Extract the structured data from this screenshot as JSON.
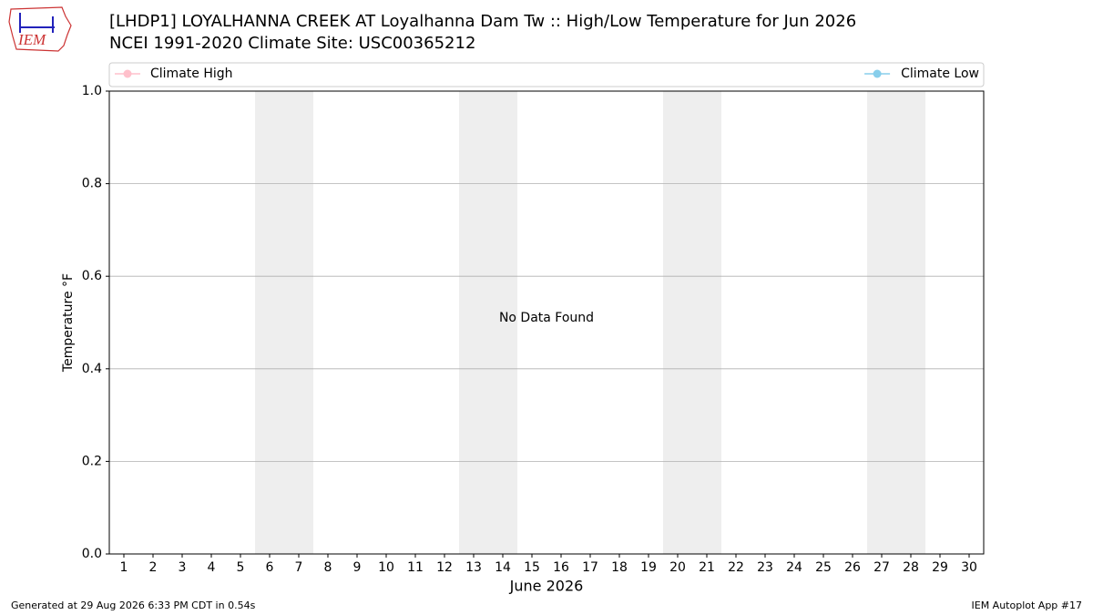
{
  "chart_data": {
    "type": "line",
    "title": "[LHDP1] LOYALHANNA CREEK  AT Loyalhanna Dam Tw :: High/Low Temperature for Jun 2026",
    "subtitle": "NCEI 1991-2020 Climate Site: USC00365212",
    "x": [
      1,
      2,
      3,
      4,
      5,
      6,
      7,
      8,
      9,
      10,
      11,
      12,
      13,
      14,
      15,
      16,
      17,
      18,
      19,
      20,
      21,
      22,
      23,
      24,
      25,
      26,
      27,
      28,
      29,
      30
    ],
    "series": [
      {
        "name": "Climate High",
        "color": "#ffc0cb",
        "values": [
          null,
          null,
          null,
          null,
          null,
          null,
          null,
          null,
          null,
          null,
          null,
          null,
          null,
          null,
          null,
          null,
          null,
          null,
          null,
          null,
          null,
          null,
          null,
          null,
          null,
          null,
          null,
          null,
          null,
          null
        ]
      },
      {
        "name": "Climate Low",
        "color": "#87ceeb",
        "values": [
          null,
          null,
          null,
          null,
          null,
          null,
          null,
          null,
          null,
          null,
          null,
          null,
          null,
          null,
          null,
          null,
          null,
          null,
          null,
          null,
          null,
          null,
          null,
          null,
          null,
          null,
          null,
          null,
          null,
          null
        ]
      }
    ],
    "xlim": [
      0.5,
      30.5
    ],
    "xticks": [
      1,
      2,
      3,
      4,
      5,
      6,
      7,
      8,
      9,
      10,
      11,
      12,
      13,
      14,
      15,
      16,
      17,
      18,
      19,
      20,
      21,
      22,
      23,
      24,
      25,
      26,
      27,
      28,
      29,
      30
    ],
    "ylim": [
      0,
      1
    ],
    "yticks": [
      {
        "value": 0,
        "label": "0.0"
      },
      {
        "value": 0.2,
        "label": "0.2"
      },
      {
        "value": 0.4,
        "label": "0.4"
      },
      {
        "value": 0.6,
        "label": "0.6"
      },
      {
        "value": 0.8,
        "label": "0.8"
      },
      {
        "value": 1,
        "label": "1.0"
      }
    ],
    "grid": true,
    "shaded_days": [
      6,
      7,
      13,
      14,
      20,
      21,
      27,
      28
    ],
    "xlabel": "June 2026",
    "ylabel": "Temperature °F",
    "annotation": "No Data Found",
    "legend_loc": "top"
  },
  "logo": "IEM",
  "footer": {
    "left": "Generated at 29 Aug 2026 6:33 PM CDT in 0.54s",
    "right": "IEM Autoplot App #17"
  }
}
